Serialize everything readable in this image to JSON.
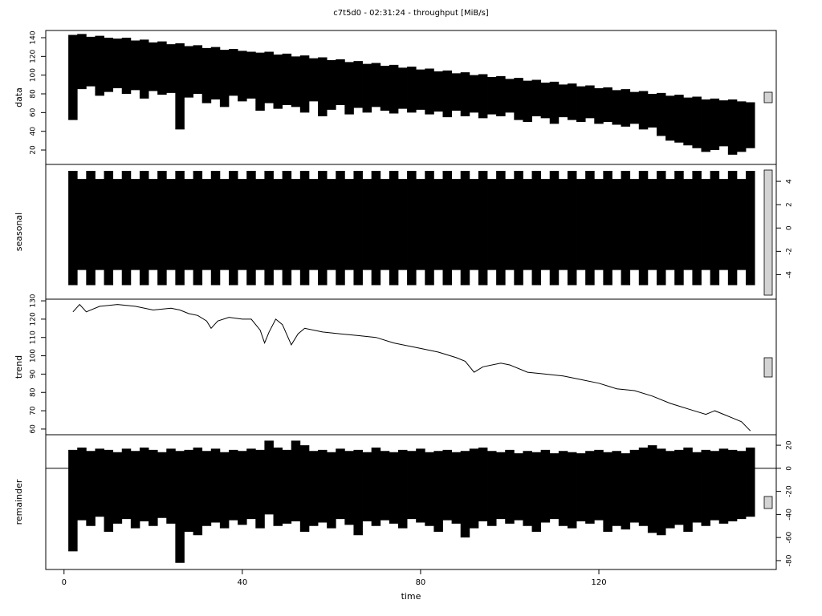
{
  "title": "c7t5d0 - 02:31:24 - throughput [MiB/s]",
  "chart_data": [
    {
      "type": "range",
      "ylabel": "data",
      "color": "#000000",
      "axis_side": "left",
      "xlim": [
        -4.1,
        159.8
      ],
      "ylim": [
        4.6,
        147.7
      ],
      "yticks": [
        20,
        40,
        60,
        80,
        100,
        120,
        140
      ],
      "x": [
        2,
        4,
        6,
        8,
        10,
        12,
        14,
        16,
        18,
        20,
        22,
        24,
        26,
        28,
        30,
        32,
        34,
        36,
        38,
        40,
        42,
        44,
        46,
        48,
        50,
        52,
        54,
        56,
        58,
        60,
        62,
        64,
        66,
        68,
        70,
        72,
        74,
        76,
        78,
        80,
        82,
        84,
        86,
        88,
        90,
        92,
        94,
        96,
        98,
        100,
        102,
        104,
        106,
        108,
        110,
        112,
        114,
        116,
        118,
        120,
        122,
        124,
        126,
        128,
        130,
        132,
        134,
        136,
        138,
        140,
        142,
        144,
        146,
        148,
        150,
        152,
        154
      ],
      "series": [
        {
          "values": [
            143,
            144,
            141,
            142,
            140,
            139,
            140,
            137,
            138,
            135,
            136,
            133,
            134,
            131,
            132,
            129,
            130,
            127,
            128,
            126,
            125,
            124,
            125,
            122,
            123,
            120,
            121,
            118,
            119,
            116,
            117,
            114,
            115,
            112,
            113,
            110,
            111,
            108,
            109,
            106,
            107,
            104,
            105,
            102,
            103,
            100,
            101,
            98,
            99,
            96,
            97,
            94,
            95,
            92,
            93,
            90,
            91,
            88,
            89,
            86,
            87,
            84,
            85,
            82,
            83,
            80,
            81,
            78,
            79,
            76,
            77,
            74,
            75,
            73,
            74,
            72,
            71
          ]
        },
        {
          "values": [
            52,
            85,
            88,
            78,
            82,
            86,
            80,
            84,
            75,
            83,
            79,
            81,
            42,
            76,
            80,
            70,
            74,
            66,
            78,
            72,
            75,
            62,
            70,
            64,
            68,
            66,
            60,
            72,
            56,
            63,
            68,
            58,
            65,
            60,
            66,
            62,
            59,
            64,
            60,
            63,
            58,
            61,
            55,
            62,
            56,
            60,
            54,
            58,
            56,
            60,
            52,
            50,
            56,
            54,
            48,
            55,
            52,
            50,
            54,
            48,
            50,
            47,
            45,
            48,
            42,
            44,
            35,
            30,
            28,
            25,
            22,
            18,
            20,
            24,
            15,
            18,
            22
          ]
        }
      ]
    },
    {
      "type": "range",
      "ylabel": "seasonal",
      "color": "#000000",
      "axis_side": "right",
      "xlim": [
        -4.1,
        159.8
      ],
      "ylim": [
        -6.1,
        5.45
      ],
      "yticks": [
        -4,
        -2,
        0,
        2,
        4
      ],
      "x": [
        2,
        4,
        6,
        8,
        10,
        12,
        14,
        16,
        18,
        20,
        22,
        24,
        26,
        28,
        30,
        32,
        34,
        36,
        38,
        40,
        42,
        44,
        46,
        48,
        50,
        52,
        54,
        56,
        58,
        60,
        62,
        64,
        66,
        68,
        70,
        72,
        74,
        76,
        78,
        80,
        82,
        84,
        86,
        88,
        90,
        92,
        94,
        96,
        98,
        100,
        102,
        104,
        106,
        108,
        110,
        112,
        114,
        116,
        118,
        120,
        122,
        124,
        126,
        128,
        130,
        132,
        134,
        136,
        138,
        140,
        142,
        144,
        146,
        148,
        150,
        152,
        154
      ],
      "series": [
        {
          "values": [
            4.9,
            4.2,
            4.9,
            4.2,
            4.9,
            4.2,
            4.9,
            4.2,
            4.9,
            4.2,
            4.9,
            4.2,
            4.9,
            4.2,
            4.9,
            4.2,
            4.9,
            4.2,
            4.9,
            4.2,
            4.9,
            4.2,
            4.9,
            4.2,
            4.9,
            4.2,
            4.9,
            4.2,
            4.9,
            4.2,
            4.9,
            4.2,
            4.9,
            4.2,
            4.9,
            4.2,
            4.9,
            4.2,
            4.9,
            4.2,
            4.9,
            4.2,
            4.9,
            4.2,
            4.9,
            4.2,
            4.9,
            4.2,
            4.9,
            4.2,
            4.9,
            4.2,
            4.9,
            4.2,
            4.9,
            4.2,
            4.9,
            4.2,
            4.9,
            4.2,
            4.9,
            4.2,
            4.9,
            4.2,
            4.9,
            4.2,
            4.9,
            4.2,
            4.9,
            4.2,
            4.9,
            4.2,
            4.9,
            4.2,
            4.9,
            4.2,
            4.9
          ]
        },
        {
          "values": [
            -4.9,
            -3.6,
            -4.9,
            -3.6,
            -4.9,
            -3.6,
            -4.9,
            -3.6,
            -4.9,
            -3.6,
            -4.9,
            -3.6,
            -4.9,
            -3.6,
            -4.9,
            -3.6,
            -4.9,
            -3.6,
            -4.9,
            -3.6,
            -4.9,
            -3.6,
            -4.9,
            -3.6,
            -4.9,
            -3.6,
            -4.9,
            -3.6,
            -4.9,
            -3.6,
            -4.9,
            -3.6,
            -4.9,
            -3.6,
            -4.9,
            -3.6,
            -4.9,
            -3.6,
            -4.9,
            -3.6,
            -4.9,
            -3.6,
            -4.9,
            -3.6,
            -4.9,
            -3.6,
            -4.9,
            -3.6,
            -4.9,
            -3.6,
            -4.9,
            -3.6,
            -4.9,
            -3.6,
            -4.9,
            -3.6,
            -4.9,
            -3.6,
            -4.9,
            -3.6,
            -4.9,
            -3.6,
            -4.9,
            -3.6,
            -4.9,
            -3.6,
            -4.9,
            -3.6,
            -4.9,
            -3.6,
            -4.9,
            -3.6,
            -4.9,
            -3.6,
            -4.9,
            -3.6,
            -4.9
          ]
        }
      ]
    },
    {
      "type": "line",
      "ylabel": "trend",
      "color": "#000000",
      "axis_side": "left",
      "xlim": [
        -4.1,
        159.8
      ],
      "ylim": [
        56.9,
        130.9
      ],
      "yticks": [
        60,
        70,
        80,
        90,
        100,
        110,
        120,
        130
      ],
      "x": [
        2,
        3.5,
        5,
        8,
        12,
        16,
        20,
        24,
        26,
        28,
        30,
        32,
        33,
        34.5,
        37,
        40,
        42,
        44,
        45,
        46,
        47.5,
        49,
        51,
        52.5,
        54,
        58,
        62,
        66,
        70,
        74,
        78,
        80,
        84,
        88,
        90,
        92,
        94,
        98,
        100,
        104,
        108,
        112,
        116,
        120,
        124,
        128,
        132,
        136,
        140,
        144,
        146,
        148,
        150,
        152,
        154
      ],
      "values": [
        124,
        128,
        124,
        127,
        128,
        127,
        125,
        126,
        125,
        123,
        122,
        119,
        115,
        119,
        121,
        120,
        120,
        114,
        107,
        113,
        120,
        117,
        106,
        112,
        115,
        113,
        112,
        111,
        110,
        107,
        105,
        104,
        102,
        99,
        97,
        91,
        94,
        96,
        95,
        91,
        90,
        89,
        87,
        85,
        82,
        81,
        78,
        74,
        71,
        68,
        70,
        68,
        66,
        64,
        59
      ]
    },
    {
      "type": "range",
      "ylabel": "remainder",
      "color": "#000000",
      "axis_side": "right",
      "hline": 0,
      "xlim": [
        -4.1,
        159.8
      ],
      "ylim": [
        -87.7,
        29.1
      ],
      "yticks": [
        -80,
        -60,
        -40,
        -20,
        0,
        20
      ],
      "xticks": [
        0,
        40,
        80,
        120
      ],
      "xlabel": "time",
      "x": [
        2,
        4,
        6,
        8,
        10,
        12,
        14,
        16,
        18,
        20,
        22,
        24,
        26,
        28,
        30,
        32,
        34,
        36,
        38,
        40,
        42,
        44,
        46,
        48,
        50,
        52,
        54,
        56,
        58,
        60,
        62,
        64,
        66,
        68,
        70,
        72,
        74,
        76,
        78,
        80,
        82,
        84,
        86,
        88,
        90,
        92,
        94,
        96,
        98,
        100,
        102,
        104,
        106,
        108,
        110,
        112,
        114,
        116,
        118,
        120,
        122,
        124,
        126,
        128,
        130,
        132,
        134,
        136,
        138,
        140,
        142,
        144,
        146,
        148,
        150,
        152,
        154
      ],
      "series": [
        {
          "values": [
            16,
            18,
            15,
            17,
            16,
            14,
            17,
            15,
            18,
            16,
            14,
            17,
            15,
            16,
            18,
            15,
            17,
            14,
            16,
            15,
            17,
            16,
            24,
            18,
            16,
            24,
            20,
            15,
            16,
            14,
            17,
            15,
            16,
            14,
            18,
            15,
            14,
            16,
            15,
            17,
            14,
            15,
            16,
            14,
            15,
            17,
            18,
            15,
            14,
            16,
            13,
            15,
            14,
            16,
            13,
            15,
            14,
            13,
            15,
            16,
            14,
            15,
            13,
            16,
            18,
            20,
            17,
            15,
            16,
            18,
            14,
            16,
            15,
            17,
            16,
            15,
            18
          ]
        },
        {
          "values": [
            -72,
            -45,
            -50,
            -42,
            -55,
            -48,
            -44,
            -52,
            -46,
            -50,
            -43,
            -48,
            -82,
            -55,
            -58,
            -50,
            -47,
            -52,
            -45,
            -49,
            -44,
            -52,
            -40,
            -50,
            -48,
            -46,
            -55,
            -50,
            -47,
            -52,
            -44,
            -49,
            -58,
            -46,
            -50,
            -45,
            -48,
            -52,
            -44,
            -47,
            -50,
            -55,
            -45,
            -48,
            -60,
            -52,
            -46,
            -50,
            -44,
            -48,
            -45,
            -50,
            -55,
            -47,
            -44,
            -50,
            -52,
            -46,
            -48,
            -45,
            -55,
            -50,
            -53,
            -47,
            -50,
            -56,
            -58,
            -52,
            -49,
            -55,
            -47,
            -50,
            -45,
            -48,
            -46,
            -44,
            -42
          ]
        }
      ]
    }
  ]
}
